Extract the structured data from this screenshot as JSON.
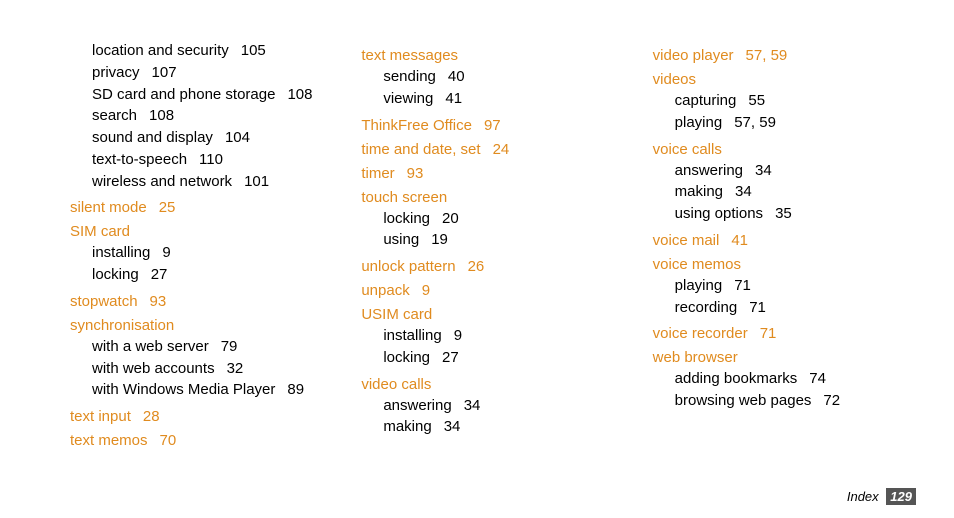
{
  "footer": {
    "label": "Index",
    "page": "129"
  },
  "colors": {
    "heading": "#e08b1f",
    "text": "#000000",
    "background": "#ffffff",
    "footer_badge_bg": "#555555"
  },
  "fontsize": {
    "body": 15,
    "footer": 13
  },
  "columns": [
    [
      {
        "type": "sub",
        "label": "location and security",
        "page": "105"
      },
      {
        "type": "sub",
        "label": "privacy",
        "page": "107"
      },
      {
        "type": "sub",
        "label": "SD card and phone storage",
        "page": "108"
      },
      {
        "type": "sub",
        "label": "search",
        "page": "108"
      },
      {
        "type": "sub",
        "label": "sound and display",
        "page": "104"
      },
      {
        "type": "sub",
        "label": "text-to-speech",
        "page": "110"
      },
      {
        "type": "sub",
        "label": "wireless and network",
        "page": "101"
      },
      {
        "type": "heading",
        "label": "silent mode",
        "page": "25"
      },
      {
        "type": "heading",
        "label": "SIM card",
        "page": ""
      },
      {
        "type": "sub",
        "label": "installing",
        "page": "9"
      },
      {
        "type": "sub",
        "label": "locking",
        "page": "27"
      },
      {
        "type": "heading",
        "label": "stopwatch",
        "page": "93"
      },
      {
        "type": "heading",
        "label": "synchronisation",
        "page": ""
      },
      {
        "type": "sub",
        "label": "with a web server",
        "page": "79"
      },
      {
        "type": "sub",
        "label": "with web accounts",
        "page": "32"
      },
      {
        "type": "sub",
        "label": "with Windows Media Player",
        "page": "89"
      },
      {
        "type": "heading",
        "label": "text input",
        "page": "28"
      },
      {
        "type": "heading",
        "label": "text memos",
        "page": "70"
      }
    ],
    [
      {
        "type": "heading",
        "label": "text messages",
        "page": ""
      },
      {
        "type": "sub",
        "label": "sending",
        "page": "40"
      },
      {
        "type": "sub",
        "label": "viewing",
        "page": "41"
      },
      {
        "type": "heading",
        "label": "ThinkFree Office",
        "page": "97"
      },
      {
        "type": "heading",
        "label": "time and date, set",
        "page": "24"
      },
      {
        "type": "heading",
        "label": "timer",
        "page": "93"
      },
      {
        "type": "heading",
        "label": "touch screen",
        "page": ""
      },
      {
        "type": "sub",
        "label": "locking",
        "page": "20"
      },
      {
        "type": "sub",
        "label": "using",
        "page": "19"
      },
      {
        "type": "heading",
        "label": "unlock pattern",
        "page": "26"
      },
      {
        "type": "heading",
        "label": "unpack",
        "page": "9"
      },
      {
        "type": "heading",
        "label": "USIM card",
        "page": ""
      },
      {
        "type": "sub",
        "label": "installing",
        "page": "9"
      },
      {
        "type": "sub",
        "label": "locking",
        "page": "27"
      },
      {
        "type": "heading",
        "label": "video calls",
        "page": ""
      },
      {
        "type": "sub",
        "label": "answering",
        "page": "34"
      },
      {
        "type": "sub",
        "label": "making",
        "page": "34"
      }
    ],
    [
      {
        "type": "heading",
        "label": "video player",
        "page": "57, 59"
      },
      {
        "type": "heading",
        "label": "videos",
        "page": ""
      },
      {
        "type": "sub",
        "label": "capturing",
        "page": "55"
      },
      {
        "type": "sub",
        "label": "playing",
        "page": "57, 59"
      },
      {
        "type": "heading",
        "label": "voice calls",
        "page": ""
      },
      {
        "type": "sub",
        "label": "answering",
        "page": "34"
      },
      {
        "type": "sub",
        "label": "making",
        "page": "34"
      },
      {
        "type": "sub",
        "label": "using options",
        "page": "35"
      },
      {
        "type": "heading",
        "label": "voice mail",
        "page": "41"
      },
      {
        "type": "heading",
        "label": "voice memos",
        "page": ""
      },
      {
        "type": "sub",
        "label": "playing",
        "page": "71"
      },
      {
        "type": "sub",
        "label": "recording",
        "page": "71"
      },
      {
        "type": "heading",
        "label": "voice recorder",
        "page": "71"
      },
      {
        "type": "heading",
        "label": "web browser",
        "page": ""
      },
      {
        "type": "sub",
        "label": "adding bookmarks",
        "page": "74"
      },
      {
        "type": "sub",
        "label": "browsing web pages",
        "page": "72"
      }
    ]
  ]
}
